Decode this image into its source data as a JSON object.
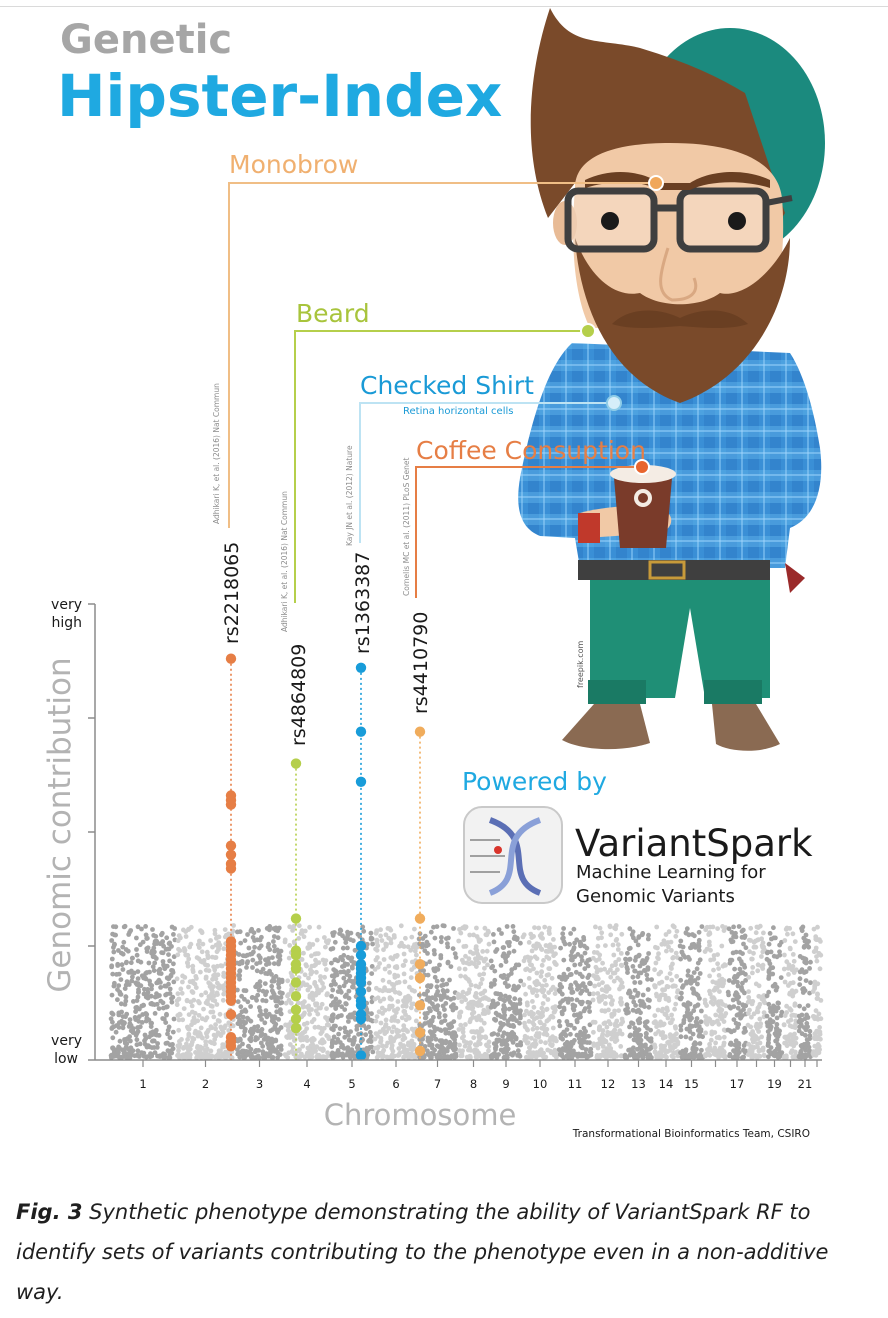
{
  "header": {
    "title_line1": "Genetic",
    "title_line2": "Hipster-Index"
  },
  "chart_data": {
    "type": "scatter",
    "title": "Genetic Hipster-Index",
    "xlabel": "Chromosome",
    "ylabel": "Genomic contribution",
    "y_tick_labels": {
      "top_line1": "very",
      "top_line2": "high",
      "bottom_line1": "very",
      "bottom_line2": "low"
    },
    "chromosome_labels": [
      "1",
      "2",
      "3",
      "4",
      "5",
      "6",
      "7",
      "8",
      "9",
      "10",
      "11",
      "12",
      "13",
      "14",
      "15",
      "17",
      "19",
      "21"
    ],
    "chromosomes_shown": 22,
    "ylim": [
      0,
      1
    ],
    "highlighted_variants": [
      {
        "trait": "Monobrow",
        "rsid": "rs2218065",
        "reference": "Adhikari K, et al. (2016) Nat Commun",
        "chromosome": 2,
        "peak": 0.88,
        "color": "#e67e45",
        "points": [
          0.88,
          0.58,
          0.57,
          0.56,
          0.47,
          0.45,
          0.43,
          0.42,
          0.26,
          0.25,
          0.24,
          0.23,
          0.22,
          0.21,
          0.2,
          0.19,
          0.18,
          0.17,
          0.16,
          0.15,
          0.14,
          0.13,
          0.1,
          0.05,
          0.04,
          0.03
        ]
      },
      {
        "trait": "Beard",
        "rsid": "rs4864809",
        "reference": "Adhikari K, et al. (2016) Nat Commun",
        "chromosome": 4,
        "peak": 0.65,
        "color": "#b5cf4b",
        "points": [
          0.65,
          0.31,
          0.24,
          0.23,
          0.21,
          0.2,
          0.17,
          0.14,
          0.11,
          0.09,
          0.07
        ]
      },
      {
        "trait": "Checked Shirt",
        "rsid": "rs1363387",
        "reference": "Kay JN et al. (2012) Nature",
        "chromosome": 5,
        "peak": 0.86,
        "color": "#189cd9",
        "points": [
          0.86,
          0.72,
          0.61,
          0.25,
          0.23,
          0.21,
          0.2,
          0.19,
          0.18,
          0.17,
          0.15,
          0.13,
          0.12,
          0.1,
          0.09,
          0.01
        ]
      },
      {
        "trait": "Coffee Consuption",
        "rsid": "rs4410790",
        "reference": "Cornelis MC et al. (2011) PLoS Genet",
        "chromosome": 7,
        "peak": 0.72,
        "color": "#f0ac5c",
        "points": [
          0.72,
          0.31,
          0.21,
          0.18,
          0.12,
          0.06,
          0.02
        ]
      }
    ],
    "annotations": [
      "Retina horizontal cells"
    ]
  },
  "illustration": {
    "credit": "freepik.com"
  },
  "powered_by": {
    "label": "Powered by",
    "product": "VariantSpark",
    "tagline_line1": "Machine Learning for",
    "tagline_line2": "Genomic Variants"
  },
  "credit": "Transformational Bioinformatics Team, CSIRO",
  "caption": {
    "label": "Fig. 3",
    "text": " Synthetic phenotype demonstrating the ability of VariantSpark RF to identify sets of variants contributing to the phenotype even in a non-additive way."
  },
  "colors": {
    "title_gray": "#a6a6a6",
    "title_blue": "#1fa9e1",
    "axis_gray": "#8c8c8c"
  }
}
